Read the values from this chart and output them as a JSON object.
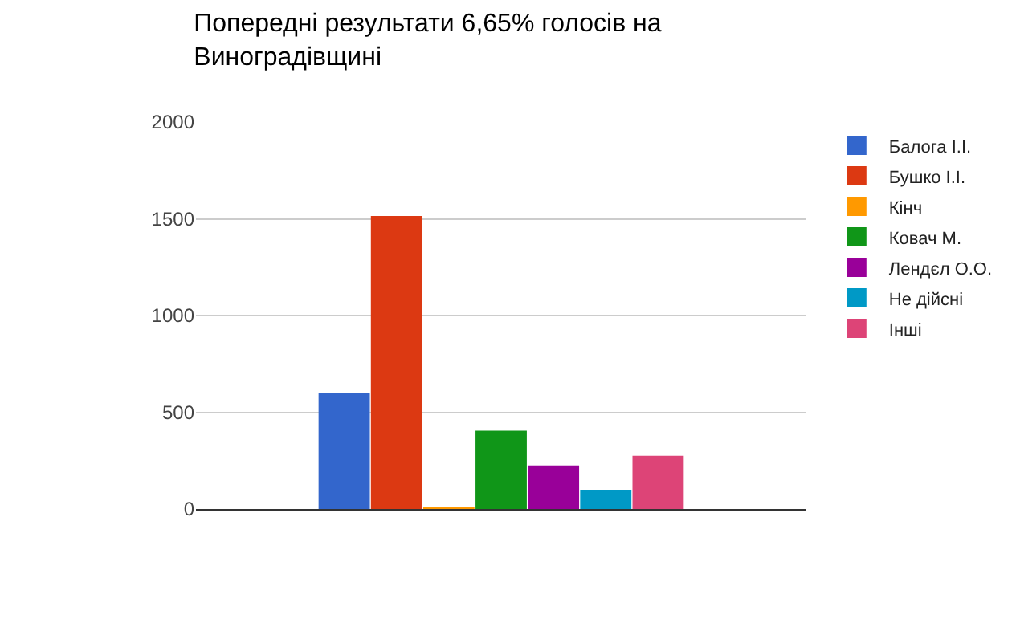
{
  "chart_data": {
    "type": "bar",
    "title": "Попередні результати 6,65% голосів на Виноградівщині",
    "categories": [
      null
    ],
    "series": [
      {
        "name": "Балога І.І.",
        "color": "#3366cc",
        "values": [
          600
        ]
      },
      {
        "name": "Бушко І.І.",
        "color": "#dc3912",
        "values": [
          1515
        ]
      },
      {
        "name": "Кінч",
        "color": "#ff9900",
        "values": [
          8
        ]
      },
      {
        "name": "Ковач М.",
        "color": "#109618",
        "values": [
          405
        ]
      },
      {
        "name": "Лендєл О.О.",
        "color": "#990099",
        "values": [
          225
        ]
      },
      {
        "name": "Не дійсні",
        "color": "#0099c6",
        "values": [
          100
        ]
      },
      {
        "name": "Інші",
        "color": "#dd4477",
        "values": [
          275
        ]
      }
    ],
    "ylim": [
      0,
      2000
    ],
    "yticks": [
      0,
      500,
      1000,
      1500,
      2000
    ],
    "grid": "y",
    "legend": "right"
  }
}
